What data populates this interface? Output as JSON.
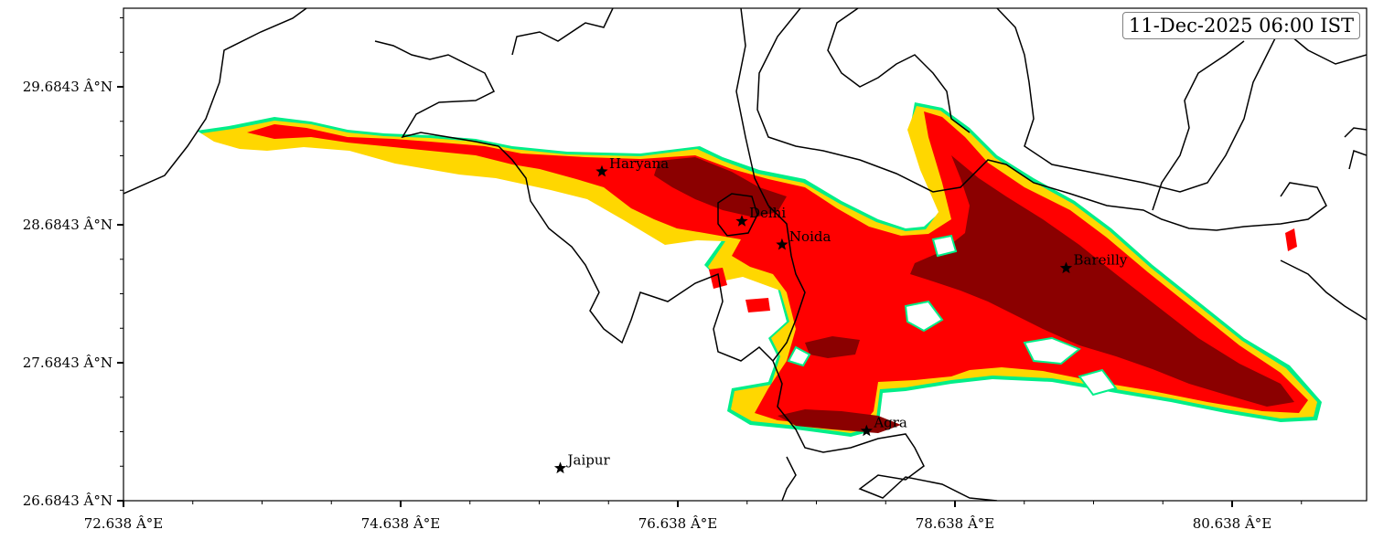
{
  "map": {
    "timestamp": "11-Dec-2025 06:00 IST",
    "extent": {
      "lon": [
        72.638,
        81.55
      ],
      "lat": [
        26.6843,
        30.25
      ]
    },
    "x_ticks": [
      {
        "value": 72.638,
        "label": "72.638 Â°E"
      },
      {
        "value": 74.638,
        "label": "74.638 Â°E"
      },
      {
        "value": 76.638,
        "label": "76.638 Â°E"
      },
      {
        "value": 78.638,
        "label": "78.638 Â°E"
      },
      {
        "value": 80.638,
        "label": "80.638 Â°E"
      }
    ],
    "y_ticks": [
      {
        "value": 29.6843,
        "label": "29.6843 Â°N"
      },
      {
        "value": 28.6843,
        "label": "28.6843 Â°N"
      },
      {
        "value": 27.6843,
        "label": "27.6843 Â°N"
      },
      {
        "value": 26.6843,
        "label": "26.6843 Â°N"
      }
    ],
    "cities": [
      {
        "name": "Haryana",
        "lon": 76.09,
        "lat": 29.07
      },
      {
        "name": "Delhi",
        "lon": 77.1,
        "lat": 28.71
      },
      {
        "name": "Noida",
        "lon": 77.39,
        "lat": 28.54
      },
      {
        "name": "Bareilly",
        "lon": 79.44,
        "lat": 28.37
      },
      {
        "name": "Agra",
        "lon": 78.0,
        "lat": 27.19
      },
      {
        "name": "Jaipur",
        "lon": 75.79,
        "lat": 26.92
      }
    ],
    "colors": {
      "contour_outer": "#00ee88",
      "level_low": "#ffd700",
      "level_mid": "#ff0000",
      "level_high": "#8b0000",
      "boundary": "#000000"
    }
  }
}
